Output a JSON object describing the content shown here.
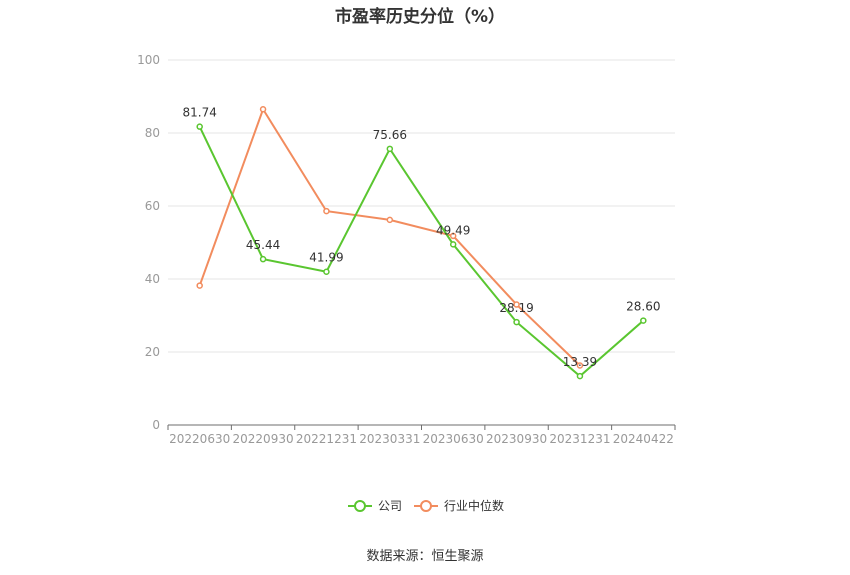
{
  "chart_data": {
    "type": "line",
    "title": "市盈率历史分位（%）",
    "categories": [
      "20220630",
      "20220930",
      "20221231",
      "20230331",
      "20230630",
      "20230930",
      "20231231",
      "20240422"
    ],
    "series": [
      {
        "name": "公司",
        "color": "#5ac630",
        "values": [
          81.74,
          45.44,
          41.99,
          75.66,
          49.49,
          28.19,
          13.39,
          28.6
        ],
        "labels": [
          "81.74",
          "45.44",
          "41.99",
          "75.66",
          "49.49",
          "28.19",
          "13.39",
          "28.60"
        ]
      },
      {
        "name": "行业中位数",
        "color": "#f28c5e",
        "values": [
          38.2,
          86.5,
          58.6,
          56.2,
          51.8,
          33.0,
          16.3,
          null
        ]
      }
    ],
    "ylim": [
      0,
      100
    ],
    "yticks": [
      0,
      20,
      40,
      60,
      80,
      100
    ],
    "grid": true,
    "legend": "bottom-center"
  },
  "source": "数据来源：恒生聚源"
}
